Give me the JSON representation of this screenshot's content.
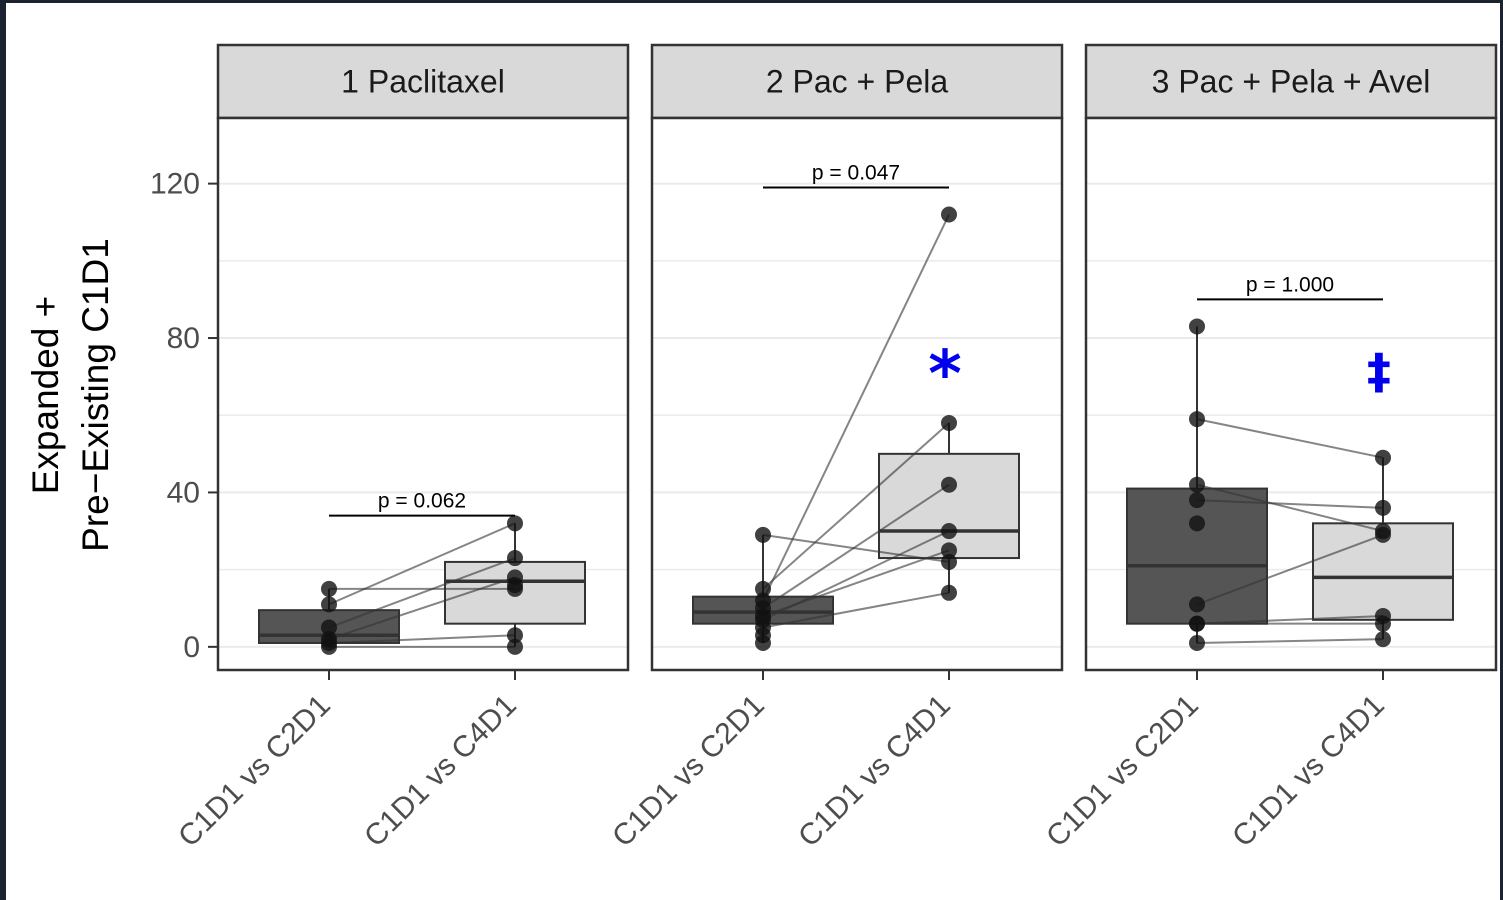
{
  "chart_data": {
    "type": "boxplot",
    "ylabel_lines": [
      "Expanded +",
      "Pre−Existing C1D1"
    ],
    "ylim": [
      -6,
      137
    ],
    "yticks": [
      0,
      40,
      80,
      120
    ],
    "minor_grid": [
      20,
      60,
      100
    ],
    "grid": true,
    "categories": [
      "C1D1 vs C2D1",
      "C1D1 vs C4D1"
    ],
    "colors": {
      "c2d1_box": "#555555",
      "c4d1_box": "#d9d9d9",
      "point": "#111111",
      "marker": "#0000ee",
      "strip": "#d9d9d9"
    },
    "panels": [
      {
        "title": "1 Paclitaxel",
        "boxes": [
          {
            "category": "C1D1 vs C2D1",
            "q1": 1,
            "median": 3,
            "q3": 9.5,
            "whisker_low": 0,
            "whisker_high": 15
          },
          {
            "category": "C1D1 vs C4D1",
            "q1": 6,
            "median": 17,
            "q3": 22,
            "whisker_low": 0,
            "whisker_high": 32
          }
        ],
        "pairs": [
          [
            15,
            15
          ],
          [
            11,
            32
          ],
          [
            5,
            23
          ],
          [
            2,
            18
          ],
          [
            1,
            3
          ],
          [
            0,
            0
          ]
        ],
        "extra_points": [
          [
            null,
            16
          ]
        ],
        "pvalue": "p = 0.062",
        "bracket_y": 34,
        "marker": ""
      },
      {
        "title": "2 Pac + Pela",
        "boxes": [
          {
            "category": "C1D1 vs C2D1",
            "q1": 6,
            "median": 9,
            "q3": 13,
            "whisker_low": 1,
            "whisker_high": 29
          },
          {
            "category": "C1D1 vs C4D1",
            "q1": 23,
            "median": 30,
            "q3": 50,
            "whisker_low": 14,
            "whisker_high": 58
          }
        ],
        "pairs": [
          [
            29,
            22
          ],
          [
            15,
            58
          ],
          [
            12,
            112
          ],
          [
            10,
            42
          ],
          [
            8,
            25
          ],
          [
            7,
            30
          ],
          [
            5,
            14
          ]
        ],
        "extra_points": [
          [
            3,
            null
          ],
          [
            1,
            null
          ]
        ],
        "pvalue": "p = 0.047",
        "bracket_y": 119,
        "marker": "*"
      },
      {
        "title": "3 Pac + Pela + Avel",
        "boxes": [
          {
            "category": "C1D1 vs C2D1",
            "q1": 6,
            "median": 21,
            "q3": 41,
            "whisker_low": 1,
            "whisker_high": 83
          },
          {
            "category": "C1D1 vs C4D1",
            "q1": 7,
            "median": 18,
            "q3": 32,
            "whisker_low": 2,
            "whisker_high": 49
          }
        ],
        "pairs": [
          [
            59,
            49
          ],
          [
            42,
            30
          ],
          [
            38,
            36
          ],
          [
            11,
            29
          ],
          [
            6,
            8
          ],
          [
            6,
            6
          ],
          [
            1,
            2
          ]
        ],
        "extra_points": [
          [
            83,
            null
          ],
          [
            32,
            null
          ]
        ],
        "pvalue": "p = 1.000",
        "bracket_y": 90,
        "marker": "‡"
      }
    ]
  }
}
